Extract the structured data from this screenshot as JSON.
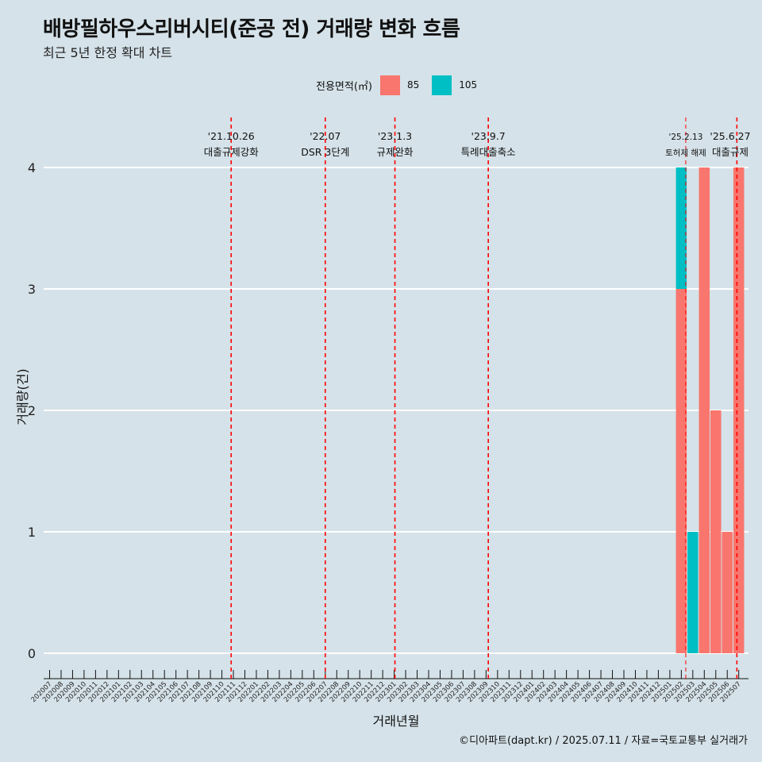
{
  "title": "배방필하우스리버시티(준공 전) 거래량 변화 흐름",
  "subtitle": "최근 5년 한정 확대 차트",
  "caption": "©디아파트(dapt.kr) / 2025.07.11 / 자료=국토교통부 실거래가",
  "legend": {
    "title": "전용면적(㎡)",
    "items": [
      {
        "label": "85",
        "color": "#f8766d"
      },
      {
        "label": "105",
        "color": "#00bfc4"
      }
    ]
  },
  "chart_data": {
    "type": "bar",
    "xlabel": "거래년월",
    "ylabel": "거래량(건)",
    "ylim": [
      0,
      4
    ],
    "yticks": [
      0,
      1,
      2,
      3,
      4
    ],
    "categories": [
      "202007",
      "202008",
      "202009",
      "202010",
      "202011",
      "202012",
      "202101",
      "202102",
      "202103",
      "202104",
      "202105",
      "202106",
      "202107",
      "202108",
      "202109",
      "202110",
      "202111",
      "202112",
      "202201",
      "202202",
      "202203",
      "202204",
      "202205",
      "202206",
      "202207",
      "202208",
      "202209",
      "202210",
      "202211",
      "202212",
      "202301",
      "202302",
      "202303",
      "202304",
      "202305",
      "202306",
      "202307",
      "202308",
      "202309",
      "202310",
      "202311",
      "202312",
      "202401",
      "202402",
      "202403",
      "202404",
      "202405",
      "202406",
      "202407",
      "202408",
      "202409",
      "202410",
      "202411",
      "202412",
      "202501",
      "202502",
      "202503",
      "202504",
      "202505",
      "202506",
      "202507"
    ],
    "series": [
      {
        "name": "85",
        "color": "#f8766d",
        "points": [
          {
            "x": "202502",
            "y": 3
          },
          {
            "x": "202504",
            "y": 4
          },
          {
            "x": "202505",
            "y": 2
          },
          {
            "x": "202506",
            "y": 1
          },
          {
            "x": "202507",
            "y": 4
          }
        ]
      },
      {
        "name": "105",
        "color": "#00bfc4",
        "points": [
          {
            "x": "202502",
            "y": 1
          },
          {
            "x": "202503",
            "y": 1
          }
        ]
      }
    ],
    "annotations": [
      {
        "x": "2021-10-26",
        "date": "'21.10.26",
        "label": "대출규제강화"
      },
      {
        "x": "2022-07",
        "date": "'22.07",
        "label": "DSR 3단계"
      },
      {
        "x": "2023-01-03",
        "date": "'23.1.3",
        "label": "규제완화"
      },
      {
        "x": "2023-09-07",
        "date": "'23.9.7",
        "label": "특례대출축소"
      },
      {
        "x": "2025-02-13",
        "date": "'25.2.13",
        "label": "토허제 해제"
      },
      {
        "x": "2025-06-27",
        "date": "'25.6.27",
        "label": "대출규제"
      }
    ],
    "grid": true,
    "legend_position": "top"
  }
}
